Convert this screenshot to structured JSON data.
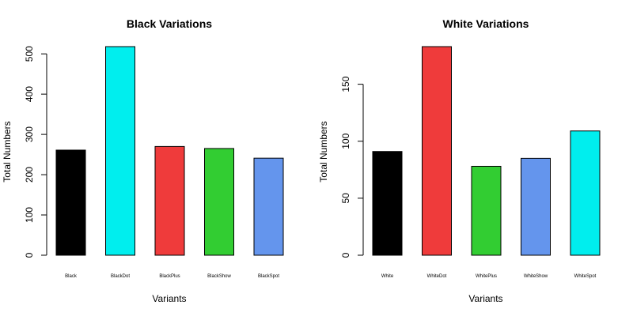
{
  "chart_data": [
    {
      "type": "bar",
      "title": "Black Variations",
      "xlabel": "Variants",
      "ylabel": "Total Numbers",
      "categories": [
        "Black",
        "BlackDot",
        "BlackPlus",
        "BlackShow",
        "BlackSpot"
      ],
      "values": [
        261,
        518,
        270,
        265,
        241
      ],
      "colors": [
        "#000000",
        "#00eeee",
        "#ef3b3b",
        "#32cd32",
        "#6495ed"
      ],
      "ylim": [
        0,
        518
      ],
      "yticks": [
        0,
        100,
        200,
        300,
        400,
        500
      ],
      "grid": false,
      "legend": "none"
    },
    {
      "type": "bar",
      "title": "White Variations",
      "xlabel": "Variants",
      "ylabel": "Total Numbers",
      "categories": [
        "White",
        "WhiteDot",
        "WhitePlus",
        "WhiteShow",
        "WhiteSpot"
      ],
      "values": [
        91,
        183,
        78,
        85,
        109
      ],
      "colors": [
        "#000000",
        "#ef3b3b",
        "#32cd32",
        "#6495ed",
        "#00eeee"
      ],
      "ylim": [
        0,
        183
      ],
      "yticks": [
        0,
        50,
        100,
        150
      ],
      "grid": false,
      "legend": "none"
    }
  ]
}
